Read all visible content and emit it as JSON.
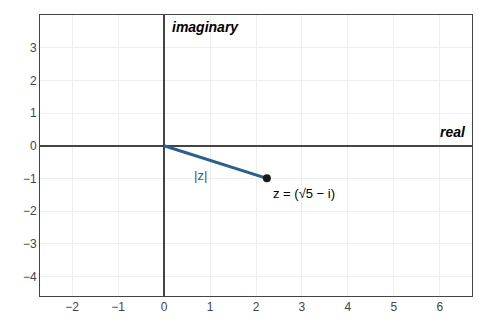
{
  "chart_data": {
    "type": "line",
    "xlabel": "real",
    "ylabel": "imaginary",
    "xlim": [
      -2.7,
      6.7
    ],
    "ylim": [
      -4.6,
      4.0
    ],
    "xticks": [
      -2,
      -1,
      0,
      1,
      2,
      3,
      4,
      5,
      6
    ],
    "yticks": [
      -4,
      -3,
      -2,
      -1,
      0,
      1,
      2,
      3
    ],
    "grid": true,
    "series": [
      {
        "type": "line",
        "color": "#2a5f8f",
        "line_style": "solid",
        "x": [
          0,
          2.23606797749979
        ],
        "values": [
          0,
          -1
        ]
      },
      {
        "type": "scatter",
        "color": "#1a1a1a",
        "marker": "circle",
        "x": [
          2.23606797749979
        ],
        "values": [
          -1
        ]
      }
    ],
    "annotations": [
      {
        "text": "z = (√5 − i)",
        "color": "#000000"
      },
      {
        "text": "|z|",
        "color": "#2a5f8f"
      }
    ]
  }
}
